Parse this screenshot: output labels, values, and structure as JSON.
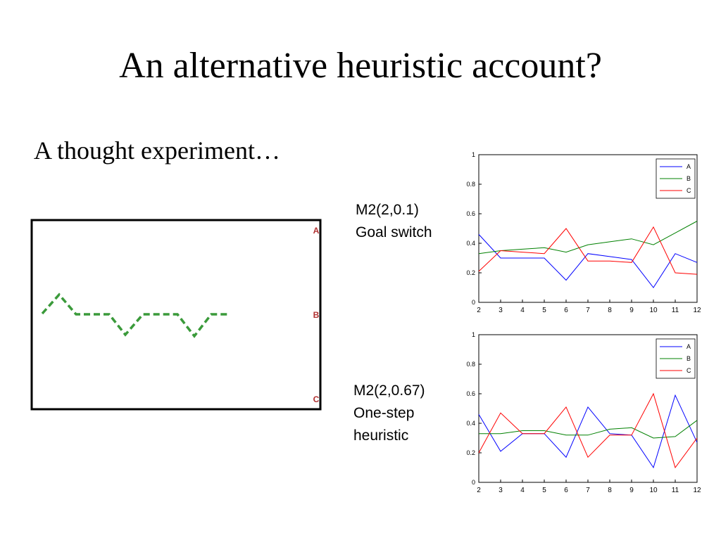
{
  "title": "An alternative heuristic account?",
  "subtitle": "A thought experiment…",
  "diagram": {
    "labels": [
      "A",
      "B",
      "C"
    ]
  },
  "chart_data": [
    {
      "type": "line",
      "caption": [
        "M2(2,0.1)",
        "Goal switch"
      ],
      "x": [
        2,
        3,
        4,
        5,
        6,
        7,
        8,
        9,
        10,
        11,
        12
      ],
      "xlim": [
        2,
        12
      ],
      "xticks": [
        2,
        3,
        4,
        5,
        6,
        7,
        8,
        9,
        10,
        11,
        12
      ],
      "ylim": [
        0,
        1
      ],
      "yticks": [
        0,
        0.2,
        0.4,
        0.6,
        0.8,
        1
      ],
      "legend": "upper right",
      "series": [
        {
          "name": "A",
          "color": "#0000ff",
          "values": [
            0.46,
            0.3,
            0.3,
            0.3,
            0.15,
            0.33,
            0.31,
            0.29,
            0.1,
            0.33,
            0.27
          ]
        },
        {
          "name": "B",
          "color": "#008000",
          "values": [
            0.33,
            0.35,
            0.36,
            0.37,
            0.34,
            0.39,
            0.41,
            0.43,
            0.39,
            0.47,
            0.55
          ]
        },
        {
          "name": "C",
          "color": "#ff0000",
          "values": [
            0.21,
            0.35,
            0.34,
            0.33,
            0.5,
            0.28,
            0.28,
            0.27,
            0.51,
            0.2,
            0.19
          ]
        }
      ]
    },
    {
      "type": "line",
      "caption": [
        "M2(2,0.67)",
        "One-step",
        "heuristic"
      ],
      "x": [
        2,
        3,
        4,
        5,
        6,
        7,
        8,
        9,
        10,
        11,
        12
      ],
      "xlim": [
        2,
        12
      ],
      "xticks": [
        2,
        3,
        4,
        5,
        6,
        7,
        8,
        9,
        10,
        11,
        12
      ],
      "ylim": [
        0,
        1
      ],
      "yticks": [
        0,
        0.2,
        0.4,
        0.6,
        0.8,
        1
      ],
      "legend": "upper right",
      "series": [
        {
          "name": "A",
          "color": "#0000ff",
          "values": [
            0.46,
            0.21,
            0.33,
            0.33,
            0.17,
            0.51,
            0.33,
            0.32,
            0.1,
            0.59,
            0.27
          ]
        },
        {
          "name": "B",
          "color": "#008000",
          "values": [
            0.33,
            0.33,
            0.35,
            0.35,
            0.32,
            0.32,
            0.36,
            0.37,
            0.3,
            0.31,
            0.42
          ]
        },
        {
          "name": "C",
          "color": "#ff0000",
          "values": [
            0.2,
            0.47,
            0.33,
            0.33,
            0.51,
            0.17,
            0.32,
            0.32,
            0.6,
            0.1,
            0.3
          ]
        }
      ]
    }
  ]
}
